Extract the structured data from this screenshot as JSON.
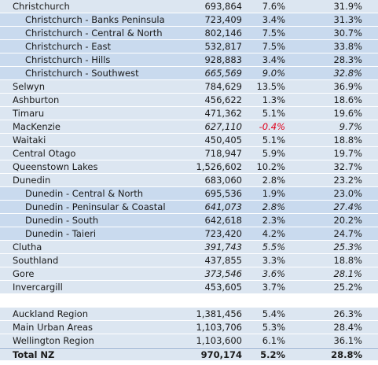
{
  "table": {
    "sections": [
      {
        "rows": [
          {
            "level": 0,
            "cells": [
              "Christchurch",
              "693,864",
              "7.6%",
              "31.9%"
            ]
          },
          {
            "level": 1,
            "cells": [
              "Christchurch - Banks Peninsula",
              "723,409",
              "3.4%",
              "31.3%"
            ]
          },
          {
            "level": 1,
            "cells": [
              "Christchurch - Central & North",
              "802,146",
              "7.5%",
              "30.7%"
            ]
          },
          {
            "level": 1,
            "cells": [
              "Christchurch - East",
              "532,817",
              "7.5%",
              "33.8%"
            ]
          },
          {
            "level": 1,
            "cells": [
              "Christchurch - Hills",
              "928,883",
              "3.4%",
              "28.3%"
            ]
          },
          {
            "level": 1,
            "italic": true,
            "cells": [
              "Christchurch - Southwest",
              "665,569",
              "9.0%",
              "32.8%"
            ]
          },
          {
            "level": 0,
            "cells": [
              "Selwyn",
              "784,629",
              "13.5%",
              "36.9%"
            ]
          },
          {
            "level": 0,
            "cells": [
              "Ashburton",
              "456,622",
              "1.3%",
              "18.6%"
            ]
          },
          {
            "level": 0,
            "cells": [
              "Timaru",
              "471,362",
              "5.1%",
              "19.6%"
            ]
          },
          {
            "level": 0,
            "italic": true,
            "cells": [
              "MacKenzie",
              "627,110",
              "-0.4%",
              "9.7%"
            ]
          },
          {
            "level": 0,
            "cells": [
              "Waitaki",
              "450,405",
              "5.1%",
              "18.8%"
            ]
          },
          {
            "level": 0,
            "cells": [
              "Central Otago",
              "718,947",
              "5.9%",
              "19.7%"
            ]
          },
          {
            "level": 0,
            "cells": [
              "Queenstown Lakes",
              "1,526,602",
              "10.2%",
              "32.7%"
            ]
          },
          {
            "level": 0,
            "cells": [
              "Dunedin",
              "683,060",
              "2.8%",
              "23.2%"
            ]
          },
          {
            "level": 1,
            "cells": [
              "Dunedin - Central & North",
              "695,536",
              "1.9%",
              "23.0%"
            ]
          },
          {
            "level": 1,
            "italic": true,
            "cells": [
              "Dunedin - Peninsular & Coastal",
              "641,073",
              "2.8%",
              "27.4%"
            ]
          },
          {
            "level": 1,
            "cells": [
              "Dunedin - South",
              "642,618",
              "2.3%",
              "20.2%"
            ]
          },
          {
            "level": 1,
            "cells": [
              "Dunedin - Taieri",
              "723,420",
              "4.2%",
              "24.7%"
            ]
          },
          {
            "level": 0,
            "italic": true,
            "cells": [
              "Clutha",
              "391,743",
              "5.5%",
              "25.3%"
            ]
          },
          {
            "level": 0,
            "cells": [
              "Southland",
              "437,855",
              "3.3%",
              "18.8%"
            ]
          },
          {
            "level": 0,
            "italic": true,
            "cells": [
              "Gore",
              "373,546",
              "3.6%",
              "28.1%"
            ]
          },
          {
            "level": 0,
            "cells": [
              "Invercargill",
              "453,605",
              "3.7%",
              "25.2%"
            ]
          }
        ]
      },
      {
        "rows": [
          {
            "level": 0,
            "cells": [
              "Auckland Region",
              "1,381,456",
              "5.4%",
              "26.3%"
            ]
          },
          {
            "level": 0,
            "cells": [
              "Main Urban Areas",
              "1,103,706",
              "5.3%",
              "28.4%"
            ]
          },
          {
            "level": 0,
            "cells": [
              "Wellington Region",
              "1,103,600",
              "6.1%",
              "36.1%"
            ]
          },
          {
            "level": 0,
            "bold": true,
            "cells": [
              "Total NZ",
              "970,174",
              "5.2%",
              "28.8%"
            ]
          }
        ]
      }
    ]
  }
}
